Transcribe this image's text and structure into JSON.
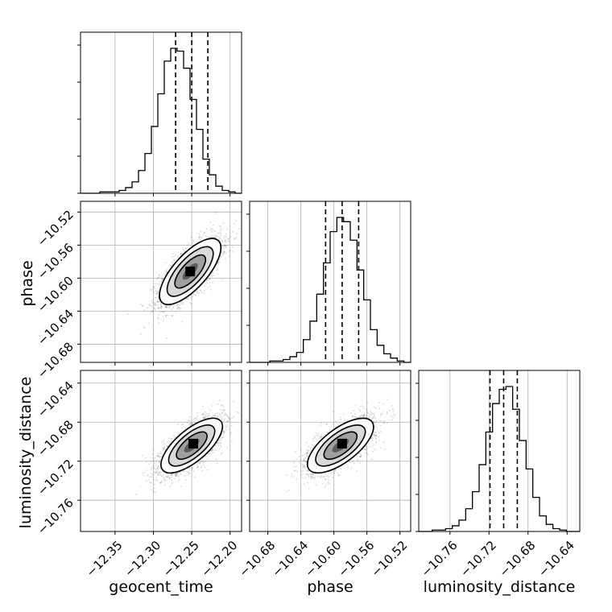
{
  "chart_data": {
    "type": "corner",
    "parameters": [
      "geocent_time",
      "phase",
      "luminosity_distance"
    ],
    "axis_labels": {
      "geocent_time": "geocent_time",
      "phase": "phase",
      "luminosity_distance": "luminosity_distance"
    },
    "ranges": {
      "geocent_time": [
        -12.395,
        -12.185
      ],
      "phase": [
        -10.702,
        -10.507
      ],
      "luminosity_distance": [
        -10.792,
        -10.627
      ]
    },
    "ticks": {
      "geocent_time": [
        -12.35,
        -12.3,
        -12.25,
        -12.2
      ],
      "phase": [
        -10.68,
        -10.64,
        -10.6,
        -10.56,
        -10.52
      ],
      "luminosity_distance": [
        -10.76,
        -10.72,
        -10.68,
        -10.64
      ]
    },
    "tick_labels": {
      "geocent_time": [
        "−12.35",
        "−12.30",
        "−12.25",
        "−12.20"
      ],
      "phase": [
        "−10.68",
        "−10.64",
        "−10.60",
        "−10.56",
        "−10.52"
      ],
      "luminosity_distance": [
        "−10.76",
        "−10.72",
        "−10.68",
        "−10.64"
      ]
    },
    "quantiles": {
      "geocent_time": [
        -12.271,
        -12.25,
        -12.229
      ],
      "phase": [
        -10.61,
        -10.59,
        -10.57
      ],
      "luminosity_distance": [
        -10.719,
        -10.705,
        -10.691
      ]
    },
    "histograms": {
      "geocent_time": {
        "bins": [
          -12.395,
          -12.185
        ],
        "counts": [
          0,
          0,
          0,
          1,
          1,
          1,
          2,
          4,
          8,
          16,
          28,
          47,
          70,
          93,
          102,
          100,
          88,
          66,
          45,
          24,
          13,
          5,
          2,
          1,
          0
        ]
      },
      "phase": {
        "bins": [
          -10.702,
          -10.507
        ],
        "counts": [
          0,
          0,
          0,
          1,
          1,
          2,
          4,
          7,
          16,
          29,
          48,
          70,
          92,
          102,
          99,
          86,
          65,
          44,
          23,
          12,
          6,
          3,
          1,
          0
        ]
      },
      "luminosity_distance": {
        "bins": [
          -10.792,
          -10.627
        ],
        "counts": [
          0,
          0,
          1,
          1,
          2,
          4,
          8,
          16,
          28,
          47,
          70,
          90,
          100,
          102,
          86,
          64,
          44,
          24,
          11,
          5,
          2,
          1,
          0,
          0
        ]
      }
    },
    "pairs": [
      {
        "x": "geocent_time",
        "y": "phase",
        "mean": [
          -12.252,
          -10.592
        ],
        "sigma": [
          0.02,
          0.02
        ],
        "correlation": 0.72,
        "density_peak": [
          -12.252,
          -10.592
        ],
        "contour_levels_sigma": [
          0.5,
          1.0,
          1.5,
          2.0
        ]
      },
      {
        "x": "geocent_time",
        "y": "luminosity_distance",
        "mean": [
          -12.25,
          -10.704
        ],
        "sigma": [
          0.02,
          0.014
        ],
        "correlation": 0.7,
        "density_peak": [
          -12.248,
          -10.702
        ],
        "contour_levels_sigma": [
          0.5,
          1.0,
          1.5,
          2.0
        ]
      },
      {
        "x": "phase",
        "y": "luminosity_distance",
        "mean": [
          -10.592,
          -10.704
        ],
        "sigma": [
          0.02,
          0.014
        ],
        "correlation": 0.68,
        "density_peak": [
          -10.59,
          -10.702
        ],
        "contour_levels_sigma": [
          0.5,
          1.0,
          1.5,
          2.0
        ]
      }
    ],
    "grid": true
  }
}
